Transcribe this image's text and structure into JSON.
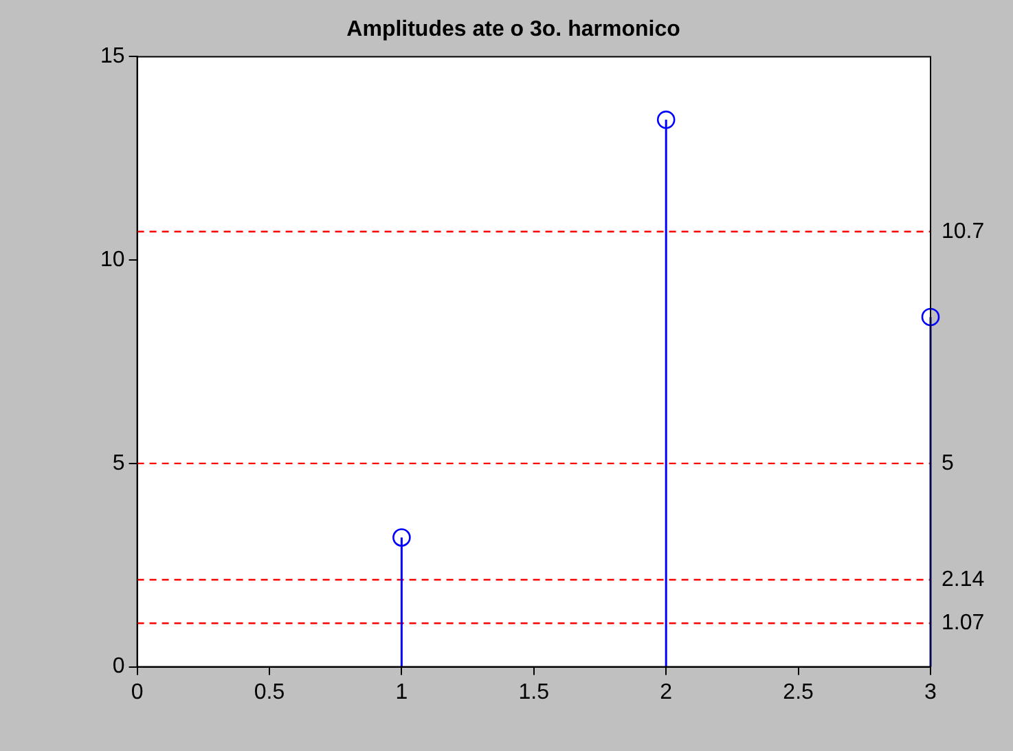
{
  "chart_data": {
    "type": "lollipop",
    "title": "Amplitudes ate o 3o. harmonico",
    "x": [
      1,
      2,
      3
    ],
    "series": [
      {
        "color": "#0000ff",
        "values": [
          3.18,
          13.45,
          8.6
        ]
      }
    ],
    "marker": "circle",
    "xlim": [
      0,
      3
    ],
    "xticks": [
      0,
      0.5,
      1,
      1.5,
      2,
      2.5,
      3
    ],
    "ylim": [
      0,
      15
    ],
    "yticks": [
      0,
      5,
      10,
      15
    ],
    "grid": false,
    "legend": false,
    "ref_lines": [
      {
        "axis": "y",
        "value": 10.7,
        "label": "10.7",
        "color": "#ff0000",
        "line_style": "dashed"
      },
      {
        "axis": "y",
        "value": 5,
        "label": "5",
        "color": "#ff0000",
        "line_style": "dashed"
      },
      {
        "axis": "y",
        "value": 2.14,
        "label": "2.14",
        "color": "#ff0000",
        "line_style": "dashed"
      },
      {
        "axis": "y",
        "value": 1.07,
        "label": "1.07",
        "color": "#ff0000",
        "line_style": "dashed"
      }
    ]
  }
}
